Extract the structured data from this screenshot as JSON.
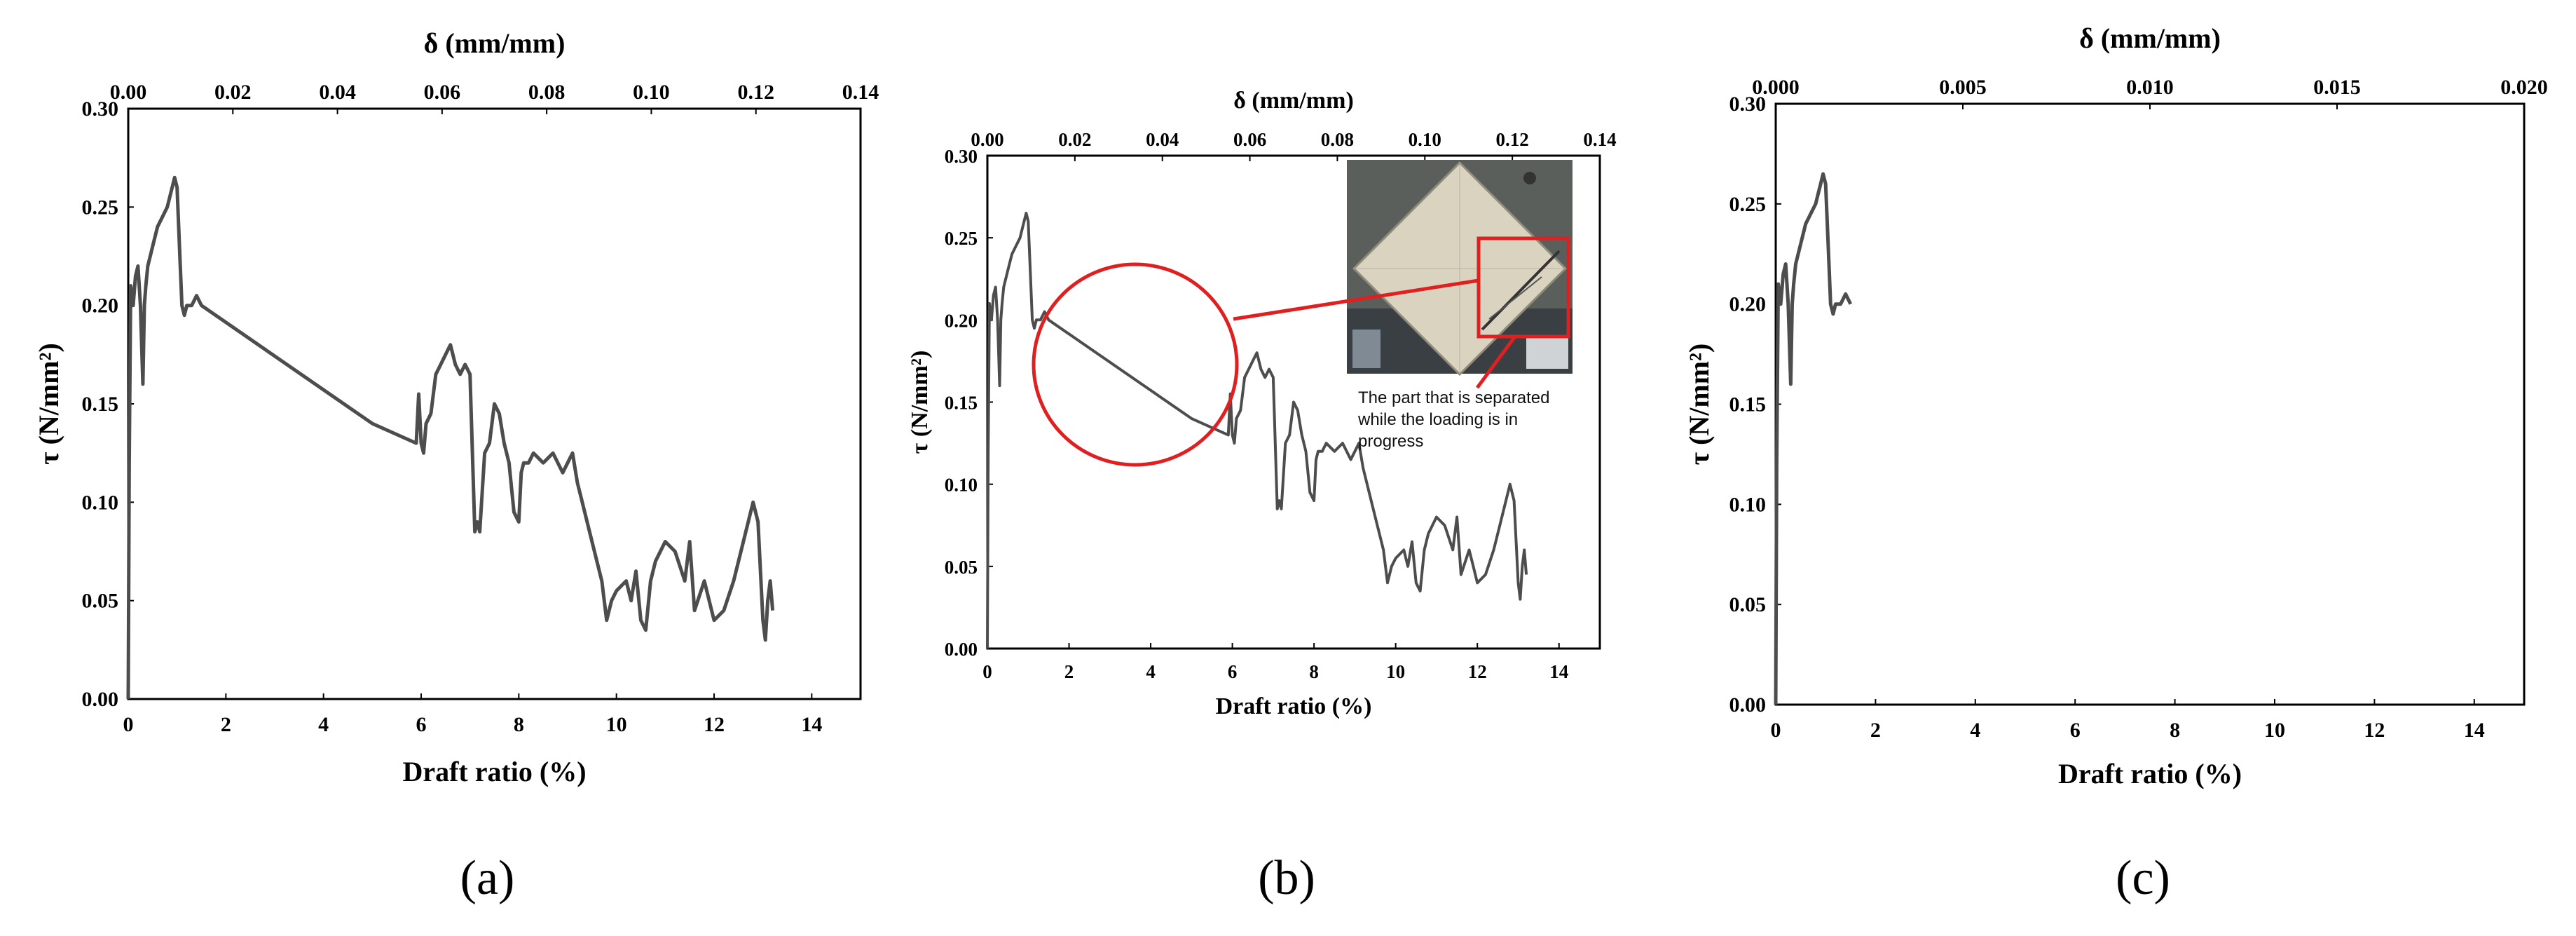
{
  "chart_data": [
    {
      "panel": "(a)",
      "type": "line",
      "xlabel": "Draft ratio (%)",
      "ylabel": "τ (N/mm²)",
      "x2label": "δ (mm/mm)",
      "xlim": [
        0,
        15
      ],
      "ylim": [
        0,
        0.3
      ],
      "x2lim": [
        0,
        0.14
      ],
      "xticks": [
        0,
        2,
        4,
        6,
        8,
        10,
        12,
        14
      ],
      "yticks": [
        "0.00",
        "0.05",
        "0.10",
        "0.15",
        "0.20",
        "0.25",
        "0.30"
      ],
      "x2ticks": [
        "0.00",
        "0.02",
        "0.04",
        "0.06",
        "0.08",
        "0.10",
        "0.12",
        "0.14"
      ],
      "line_color": "#4d4d4d",
      "x": [
        0,
        0.02,
        0.05,
        0.1,
        0.15,
        0.2,
        0.25,
        0.3,
        0.33,
        0.36,
        0.4,
        0.5,
        0.6,
        0.7,
        0.8,
        0.85,
        0.9,
        0.95,
        1.0,
        1.05,
        1.1,
        1.15,
        1.2,
        1.3,
        1.4,
        1.5,
        5.0,
        5.9,
        5.95,
        6.0,
        6.05,
        6.1,
        6.2,
        6.3,
        6.4,
        6.5,
        6.6,
        6.7,
        6.8,
        6.9,
        7.0,
        7.1,
        7.15,
        7.2,
        7.3,
        7.4,
        7.45,
        7.5,
        7.6,
        7.7,
        7.8,
        7.9,
        8.0,
        8.05,
        8.1,
        8.2,
        8.3,
        8.5,
        8.7,
        8.9,
        9.0,
        9.1,
        9.2,
        9.3,
        9.5,
        9.7,
        9.8,
        9.9,
        10.0,
        10.2,
        10.3,
        10.4,
        10.5,
        10.6,
        10.7,
        10.8,
        11.0,
        11.2,
        11.4,
        11.5,
        11.6,
        11.8,
        11.9,
        12.0,
        12.2,
        12.4,
        12.6,
        12.8,
        12.9,
        13.0,
        13.05,
        13.1,
        13.15,
        13.2
      ],
      "y": [
        0,
        0.12,
        0.21,
        0.2,
        0.215,
        0.22,
        0.2,
        0.16,
        0.2,
        0.21,
        0.22,
        0.23,
        0.24,
        0.245,
        0.25,
        0.255,
        0.26,
        0.265,
        0.26,
        0.23,
        0.2,
        0.195,
        0.2,
        0.2,
        0.205,
        0.2,
        0.14,
        0.13,
        0.155,
        0.13,
        0.125,
        0.14,
        0.145,
        0.165,
        0.17,
        0.175,
        0.18,
        0.17,
        0.165,
        0.17,
        0.165,
        0.085,
        0.09,
        0.085,
        0.125,
        0.13,
        0.14,
        0.15,
        0.145,
        0.13,
        0.12,
        0.095,
        0.09,
        0.115,
        0.12,
        0.12,
        0.125,
        0.12,
        0.125,
        0.115,
        0.12,
        0.125,
        0.11,
        0.1,
        0.08,
        0.06,
        0.04,
        0.05,
        0.055,
        0.06,
        0.05,
        0.065,
        0.04,
        0.035,
        0.06,
        0.07,
        0.08,
        0.075,
        0.06,
        0.08,
        0.045,
        0.06,
        0.05,
        0.04,
        0.045,
        0.06,
        0.08,
        0.1,
        0.09,
        0.04,
        0.03,
        0.05,
        0.06,
        0.045
      ]
    },
    {
      "panel": "(b)",
      "type": "line",
      "xlabel": "Draft ratio (%)",
      "ylabel": "τ (N/mm²)",
      "x2label": "δ (mm/mm)",
      "xlim": [
        0,
        15
      ],
      "ylim": [
        0,
        0.3
      ],
      "x2lim": [
        0,
        0.14
      ],
      "xticks": [
        0,
        2,
        4,
        6,
        8,
        10,
        12,
        14
      ],
      "yticks": [
        "0.00",
        "0.05",
        "0.10",
        "0.15",
        "0.20",
        "0.25",
        "0.30"
      ],
      "x2ticks": [
        "0.00",
        "0.02",
        "0.04",
        "0.06",
        "0.08",
        "0.10",
        "0.12",
        "0.14"
      ],
      "line_color": "#4d4d4d",
      "annotation": "The part that is separated while the loading is in progress",
      "annotation_lines": [
        "The part that is separated",
        "while the loading is in",
        "progress"
      ],
      "highlight_color": "#e02020"
    },
    {
      "panel": "(c)",
      "type": "line",
      "xlabel": "Draft ratio (%)",
      "ylabel": "τ (N/mm²)",
      "x2label": "δ (mm/mm)",
      "xlim": [
        0,
        15
      ],
      "ylim": [
        0,
        0.3
      ],
      "x2lim": [
        0,
        0.02
      ],
      "xticks": [
        0,
        2,
        4,
        6,
        8,
        10,
        12,
        14
      ],
      "yticks": [
        "0.00",
        "0.05",
        "0.10",
        "0.15",
        "0.20",
        "0.25",
        "0.30"
      ],
      "x2ticks": [
        "0.000",
        "0.005",
        "0.010",
        "0.015",
        "0.020"
      ],
      "line_color": "#4d4d4d",
      "x": [
        0,
        0.02,
        0.05,
        0.1,
        0.15,
        0.2,
        0.25,
        0.3,
        0.33,
        0.36,
        0.4,
        0.5,
        0.6,
        0.7,
        0.8,
        0.85,
        0.9,
        0.95,
        1.0,
        1.05,
        1.1,
        1.15,
        1.2,
        1.3,
        1.4,
        1.5
      ],
      "y": [
        0,
        0.12,
        0.21,
        0.2,
        0.215,
        0.22,
        0.2,
        0.16,
        0.2,
        0.21,
        0.22,
        0.23,
        0.24,
        0.245,
        0.25,
        0.255,
        0.26,
        0.265,
        0.26,
        0.23,
        0.2,
        0.195,
        0.2,
        0.2,
        0.205,
        0.2
      ]
    }
  ]
}
